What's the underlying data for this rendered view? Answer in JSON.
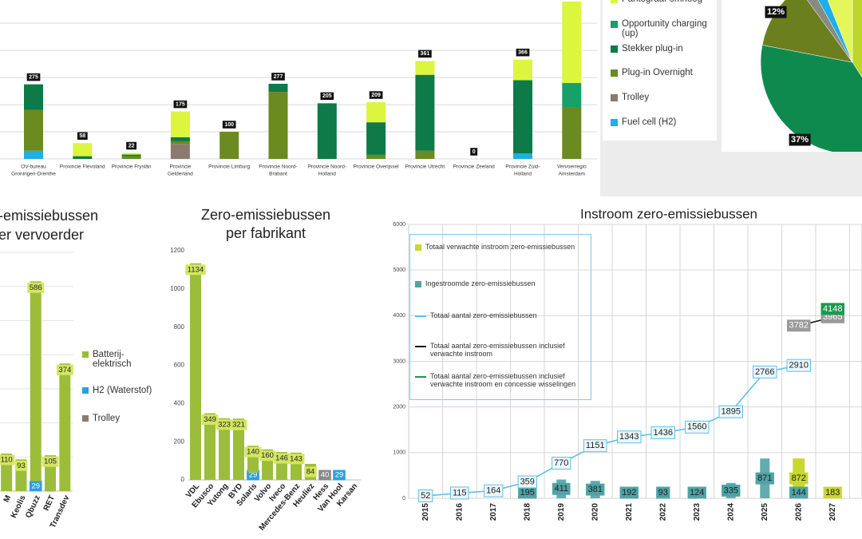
{
  "chart_data": [
    {
      "type": "bar",
      "stacked": true,
      "categories": [
        [
          "OV-bureau",
          "Groningen-Drenthe"
        ],
        [
          "Provincie Flevoland"
        ],
        [
          "Provincie Fryslân"
        ],
        [
          "Provincie",
          "Gelderland"
        ],
        [
          "Provincie Limburg"
        ],
        [
          "Provincie Noord-",
          "Brabant"
        ],
        [
          "Provincie Noord-",
          "Holland"
        ],
        [
          "Provincie Overijssel"
        ],
        [
          "Provincie Utrecht"
        ],
        [
          "Provincie Zeeland"
        ],
        [
          "Provincie Zuid-",
          "Holland"
        ],
        [
          "Vervoerregio",
          "Amsterdam"
        ]
      ],
      "series": [
        {
          "name": "Pantograaf omhoog",
          "color": "#dcf53e",
          "values": [
            0,
            48,
            6,
            95,
            0,
            0,
            0,
            74,
            51,
            0,
            76,
            300
          ]
        },
        {
          "name": "Opportunity charging (up)",
          "color": "#17a06a",
          "values": [
            0,
            0,
            0,
            0,
            0,
            0,
            0,
            0,
            0,
            0,
            0,
            90
          ]
        },
        {
          "name": "Stekker plug-in",
          "color": "#0d7a48",
          "values": [
            95,
            10,
            6,
            15,
            0,
            30,
            205,
            120,
            280,
            0,
            270,
            0
          ]
        },
        {
          "name": "Plug-in Overnight",
          "color": "#6b8a1f",
          "values": [
            150,
            0,
            10,
            10,
            100,
            247,
            0,
            15,
            30,
            0,
            0,
            190
          ]
        },
        {
          "name": "Trolley",
          "color": "#8a7b6e",
          "values": [
            0,
            0,
            0,
            55,
            0,
            0,
            0,
            0,
            0,
            0,
            0,
            0
          ]
        },
        {
          "name": "Fuel cell (H2)",
          "color": "#1eaee8",
          "values": [
            30,
            0,
            0,
            0,
            0,
            0,
            0,
            0,
            0,
            0,
            20,
            0
          ]
        }
      ],
      "totals": [
        275,
        58,
        22,
        175,
        100,
        277,
        205,
        209,
        361,
        0,
        366,
        null
      ],
      "ylim": [
        0,
        580
      ],
      "yticks": [
        0,
        100,
        200,
        300,
        400,
        500
      ],
      "grid": true
    },
    {
      "type": "pie",
      "values": [
        41,
        37,
        12,
        2,
        2,
        6
      ],
      "colors": [
        "#bcd62c",
        "#0f8a4f",
        "#6b7f1f",
        "#8a8a80",
        "#1eaee8",
        "#e3f75a"
      ],
      "value_labels": [
        null,
        "37%",
        "12%",
        null,
        null,
        null
      ]
    },
    {
      "type": "bar",
      "stacked": true,
      "title": [
        "-emissiebussen",
        "er vervoerder"
      ],
      "categories": [
        "M",
        "Keolis",
        "Qbuzz",
        "RET",
        "Transdev"
      ],
      "series": [
        {
          "name": "Batterij-elektrisch",
          "color": "#9cbd3a",
          "values": [
            110,
            93,
            586,
            105,
            374
          ]
        },
        {
          "name": "H2 (Waterstof)",
          "color": "#2aa0dc",
          "values": [
            null,
            null,
            29,
            0,
            null
          ]
        },
        {
          "name": "Trolley",
          "color": "#8a7b6e",
          "values": [
            null,
            null,
            null,
            null,
            null
          ]
        }
      ],
      "ylim": [
        0,
        700
      ],
      "yticks": [
        0,
        100,
        200,
        300,
        400,
        500,
        600,
        700
      ],
      "grid": true
    },
    {
      "type": "bar",
      "stacked": true,
      "title": [
        "Zero-emissiebussen",
        "per fabrikant"
      ],
      "categories": [
        "VDL",
        "Ebusco",
        "Yutong",
        "BYD",
        "Solaris",
        "Volvo",
        "Iveco",
        "Mercedes-Benz",
        "Heuliez",
        "Hess",
        "Van Hool",
        "Karsan"
      ],
      "series": [
        {
          "name": "Batterij-elektrisch",
          "color": "#9cbd3a",
          "values": [
            1134,
            349,
            323,
            321,
            140,
            160,
            146,
            143,
            84,
            null,
            null,
            null
          ]
        },
        {
          "name": "H2 (Waterstof)",
          "color": "#2aa0dc",
          "values": [
            null,
            null,
            null,
            null,
            29,
            null,
            null,
            null,
            null,
            null,
            29,
            null
          ]
        },
        {
          "name": "Trolley",
          "color": "#8a8a8a",
          "values": [
            null,
            null,
            null,
            null,
            10,
            null,
            null,
            null,
            null,
            40,
            null,
            null
          ]
        }
      ],
      "ylim": [
        0,
        1200
      ],
      "yticks": [
        0,
        200,
        400,
        600,
        800,
        1000,
        1200
      ],
      "grid": false
    },
    {
      "type": "combo",
      "title": "Instroom zero-emissiebussen",
      "categories": [
        "2015",
        "2016",
        "2017",
        "2018",
        "2019",
        "2020",
        "2021",
        "2022",
        "2023",
        "2024",
        "2025",
        "2026",
        "2027"
      ],
      "series": [
        {
          "name": "Totaal verwachte instroom zero-emissiebussen",
          "type": "bar",
          "color": "#c8d82e",
          "values": [
            null,
            null,
            null,
            null,
            null,
            null,
            null,
            null,
            null,
            null,
            null,
            872,
            183
          ]
        },
        {
          "name": "Ingestroomde zero-emissiebussen",
          "type": "bar",
          "color": "#4fa3a5",
          "values": [
            null,
            null,
            null,
            195,
            411,
            381,
            192,
            93,
            124,
            335,
            871,
            144,
            null
          ]
        },
        {
          "name": "Totaal aantal zero-emissiebussen",
          "type": "line",
          "color": "#5bc0e8",
          "values": [
            52,
            115,
            164,
            359,
            770,
            1151,
            1343,
            1436,
            1560,
            1895,
            2766,
            2910,
            null
          ]
        },
        {
          "name": "Totaal aantal zero-emissiebussen inclusief verwachte instroom",
          "type": "line",
          "color": "#111111",
          "values": [
            null,
            null,
            null,
            null,
            null,
            null,
            null,
            null,
            null,
            null,
            null,
            3782,
            3965
          ]
        },
        {
          "name": "Totaal aantal zero-emissiebussen inclusief verwachte instroom en  concessie wisselingen",
          "type": "line",
          "color": "#1a9a50",
          "values": [
            null,
            null,
            null,
            null,
            null,
            null,
            null,
            null,
            null,
            null,
            null,
            null,
            4148
          ]
        }
      ],
      "ylim": [
        0,
        6000
      ],
      "yticks": [
        0,
        1000,
        2000,
        3000,
        4000,
        5000,
        6000
      ],
      "grid": true
    }
  ]
}
